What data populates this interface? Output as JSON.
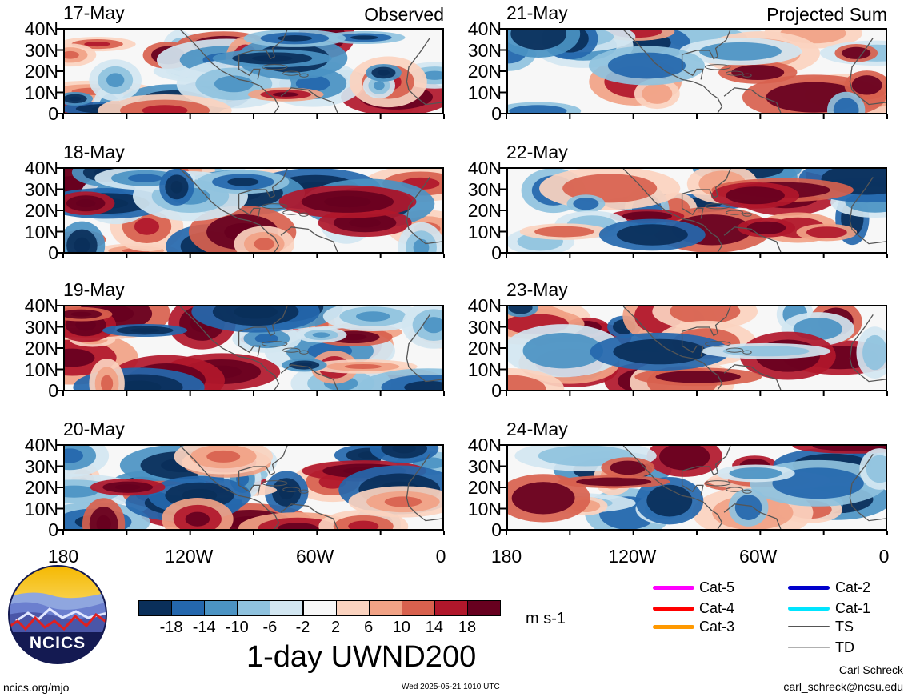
{
  "panels": {
    "observed": [
      {
        "date": "17-May",
        "tag": "Observed"
      },
      {
        "date": "18-May",
        "tag": ""
      },
      {
        "date": "19-May",
        "tag": ""
      },
      {
        "date": "20-May",
        "tag": ""
      }
    ],
    "projected": [
      {
        "date": "21-May",
        "tag": "Projected Sum"
      },
      {
        "date": "22-May",
        "tag": ""
      },
      {
        "date": "23-May",
        "tag": ""
      },
      {
        "date": "24-May",
        "tag": ""
      }
    ]
  },
  "axes": {
    "lat_labels": [
      "40N",
      "30N",
      "20N",
      "10N",
      "0"
    ],
    "lon_labels": [
      "180",
      "120W",
      "60W",
      "0"
    ],
    "lon_range": [
      -180,
      0
    ],
    "lat_range": [
      0,
      40
    ]
  },
  "colorbar": {
    "tick_labels": [
      "-18",
      "-14",
      "-10",
      "-6",
      "-2",
      "2",
      "6",
      "10",
      "14",
      "18"
    ],
    "colors": [
      "#0a2f5a",
      "#2467ad",
      "#4b93c3",
      "#8fc2de",
      "#d2e6f1",
      "#f7f7f7",
      "#fbd3bf",
      "#f1a285",
      "#d8614e",
      "#b1172b",
      "#67001f"
    ],
    "units": "m s-1",
    "title": "1-day UWND200"
  },
  "logo": {
    "text": "NCICS"
  },
  "legend": [
    {
      "label": "Cat-5",
      "color": "#ff00ff"
    },
    {
      "label": "Cat-4",
      "color": "#ff0000"
    },
    {
      "label": "Cat-3",
      "color": "#ff9900"
    },
    {
      "label": "Cat-2",
      "color": "#0000cc"
    },
    {
      "label": "Cat-1",
      "color": "#00e5ff"
    },
    {
      "label": "TS",
      "color": "#555555"
    },
    {
      "label": "TD",
      "color": "#b0b0b0"
    }
  ],
  "footer": {
    "left": "ncics.org/mjo",
    "center": "Wed 2025-05-21 1010 UTC",
    "author": "Carl Schreck",
    "email": "carl_schreck@ncsu.edu"
  }
}
